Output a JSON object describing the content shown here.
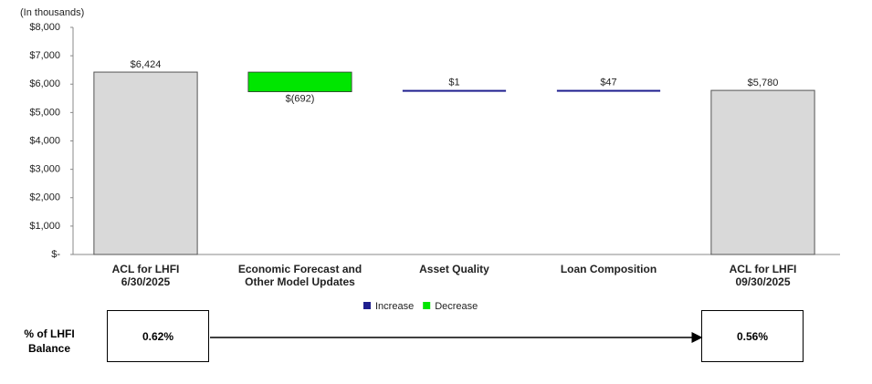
{
  "chart_data": {
    "type": "waterfall",
    "y_label": "(In thousands)",
    "categories": [
      "ACL  for LHFI\n6/30/2025",
      "Economic Forecast and\nOther Model Updates",
      "Asset Quality",
      "Loan Composition",
      "ACL  for LHFI\n09/30/2025"
    ],
    "kinds": [
      "total",
      "delta",
      "delta",
      "delta",
      "total"
    ],
    "values": [
      6424,
      -692,
      1,
      47,
      5780
    ],
    "value_labels": [
      "$6,424",
      "$(692)",
      "$1",
      "$47",
      "$5,780"
    ],
    "total_color": "#d9d9d9",
    "legend": [
      {
        "name": "Increase",
        "color": "#1f1f8f"
      },
      {
        "name": "Decrease",
        "color": "#00e600"
      }
    ],
    "ylim": [
      0,
      8000
    ],
    "yticks": [
      {
        "value": 0,
        "label": "$-"
      },
      {
        "value": 1000,
        "label": "$1,000"
      },
      {
        "value": 2000,
        "label": "$2,000"
      },
      {
        "value": 3000,
        "label": "$3,000"
      },
      {
        "value": 4000,
        "label": "$4,000"
      },
      {
        "value": 5000,
        "label": "$5,000"
      },
      {
        "value": 6000,
        "label": "$6,000"
      },
      {
        "value": 7000,
        "label": "$7,000"
      },
      {
        "value": 8000,
        "label": "$8,000"
      }
    ]
  },
  "ratio": {
    "label": "% of LHFI\nBalance",
    "start": "0.62%",
    "end": "0.56%"
  }
}
